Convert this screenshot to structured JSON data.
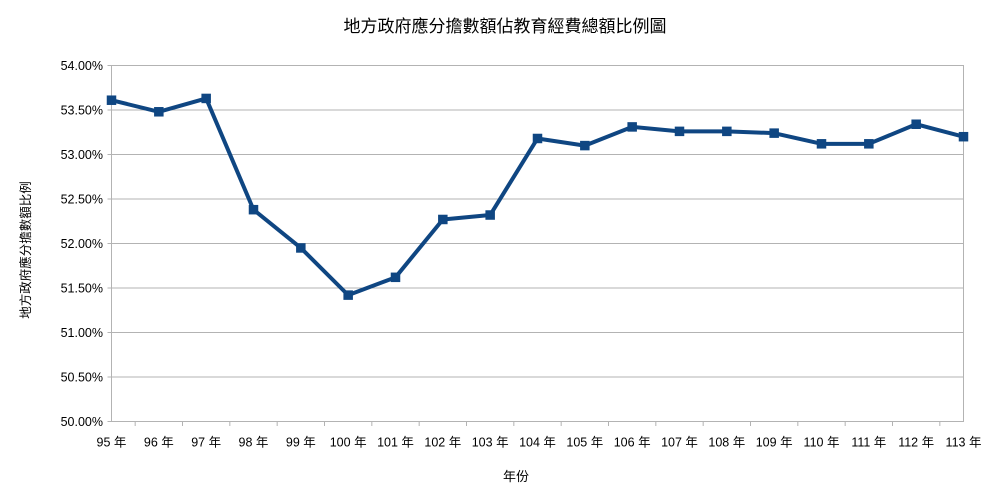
{
  "chart_data": {
    "type": "line",
    "title": "地方政府應分擔數額佔教育經費總額比例圖",
    "xlabel": "年份",
    "ylabel": "地方政府應分擔數額比例",
    "categories": [
      "95 年",
      "96 年",
      "97 年",
      "98 年",
      "99 年",
      "100 年",
      "101 年",
      "102 年",
      "103 年",
      "104 年",
      "105 年",
      "106 年",
      "107 年",
      "108 年",
      "109 年",
      "110 年",
      "111 年",
      "112 年",
      "113 年"
    ],
    "values": [
      53.61,
      53.48,
      53.63,
      52.38,
      51.95,
      51.42,
      51.62,
      52.27,
      52.32,
      53.18,
      53.1,
      53.31,
      53.26,
      53.26,
      53.24,
      53.12,
      53.12,
      53.34,
      53.2
    ],
    "ylim": [
      50.0,
      54.0
    ],
    "ytick_step": 0.5,
    "ytick_labels": [
      "50.00%",
      "50.50%",
      "51.00%",
      "51.50%",
      "52.00%",
      "52.50%",
      "53.00%",
      "53.50%",
      "54.00%"
    ],
    "grid": "horizontal",
    "legend": "none",
    "series_color": "#0F4682",
    "grid_color": "#B3B3B3",
    "text_color": "#000000",
    "background": "#FFFFFF"
  }
}
